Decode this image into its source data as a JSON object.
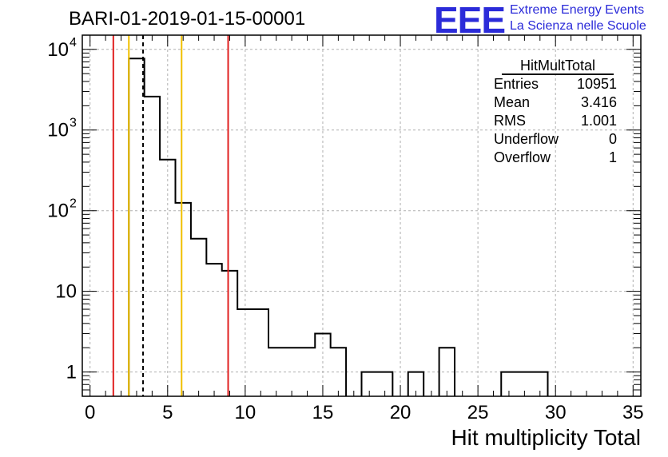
{
  "header": {
    "run_title": "BARI-01-2019-01-15-00001",
    "logo_text": "EEE",
    "org_line1": "Extreme Energy Events",
    "org_line2": "La Scienza nelle Scuole"
  },
  "stats_box": {
    "name": "HitMultTotal",
    "rows": [
      {
        "label": "Entries",
        "value": "10951"
      },
      {
        "label": "Mean",
        "value": "3.416"
      },
      {
        "label": "RMS",
        "value": "1.001"
      },
      {
        "label": "Underflow",
        "value": "0"
      },
      {
        "label": "Overflow",
        "value": "1"
      }
    ]
  },
  "chart_data": {
    "type": "bar",
    "histogram": true,
    "title": "BARI-01-2019-01-15-00001",
    "xlabel": "Hit multiplicity Total",
    "ylabel": "",
    "xlim": [
      0,
      35
    ],
    "ylim": [
      0.5,
      15000
    ],
    "yscale": "log",
    "grid": true,
    "bin_width": 1,
    "bin_edges_start": -0.5,
    "bins": [
      {
        "x": 3,
        "value": 7700
      },
      {
        "x": 4,
        "value": 2600
      },
      {
        "x": 5,
        "value": 430
      },
      {
        "x": 6,
        "value": 125
      },
      {
        "x": 7,
        "value": 45
      },
      {
        "x": 8,
        "value": 22
      },
      {
        "x": 9,
        "value": 18
      },
      {
        "x": 10,
        "value": 6
      },
      {
        "x": 11,
        "value": 6
      },
      {
        "x": 12,
        "value": 2
      },
      {
        "x": 13,
        "value": 2
      },
      {
        "x": 14,
        "value": 2
      },
      {
        "x": 15,
        "value": 3
      },
      {
        "x": 16,
        "value": 2
      },
      {
        "x": 18,
        "value": 1
      },
      {
        "x": 19,
        "value": 1
      },
      {
        "x": 21,
        "value": 1
      },
      {
        "x": 23,
        "value": 2
      },
      {
        "x": 27,
        "value": 1
      },
      {
        "x": 28,
        "value": 1
      },
      {
        "x": 29,
        "value": 1
      }
    ],
    "x_ticks": [
      "0",
      "5",
      "10",
      "15",
      "20",
      "25",
      "30",
      "35"
    ],
    "y_ticks": [
      {
        "value": 1,
        "label": "1"
      },
      {
        "value": 10,
        "label": "10"
      },
      {
        "value": 100,
        "label": "10",
        "exp": "2"
      },
      {
        "value": 1000,
        "label": "10",
        "exp": "3"
      },
      {
        "value": 10000,
        "label": "10",
        "exp": "4"
      }
    ],
    "vertical_lines": [
      {
        "x": 1.5,
        "color": "#e02020",
        "style": "solid"
      },
      {
        "x": 2.5,
        "color": "#f0c000",
        "style": "solid"
      },
      {
        "x": 3.416,
        "color": "#000000",
        "style": "dashed"
      },
      {
        "x": 5.9,
        "color": "#f0c000",
        "style": "solid"
      },
      {
        "x": 8.9,
        "color": "#e02020",
        "style": "solid"
      }
    ]
  }
}
